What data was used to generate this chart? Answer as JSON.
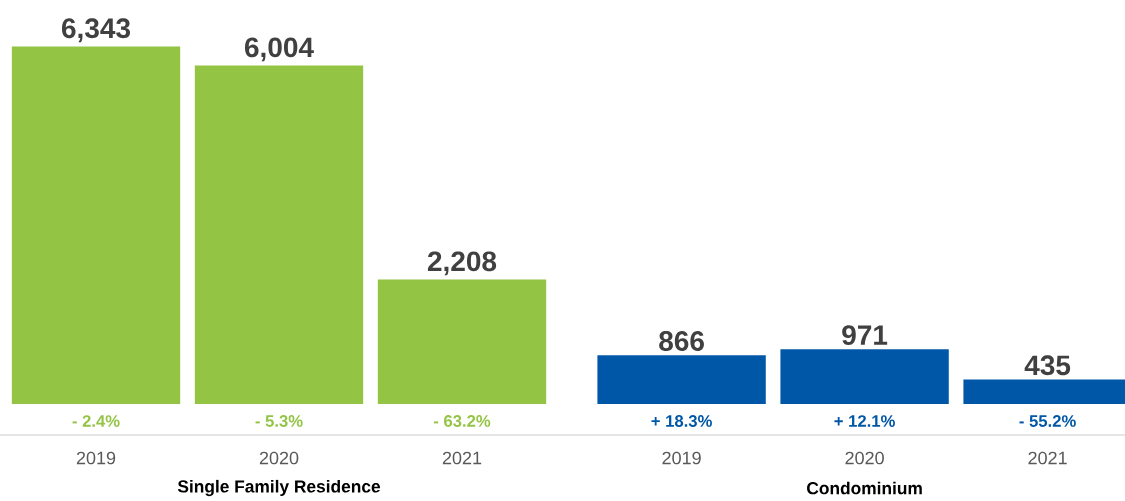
{
  "chart_data": {
    "type": "bar",
    "categories": [
      "2019",
      "2020",
      "2021",
      "2019",
      "2020",
      "2021"
    ],
    "values": [
      6343,
      6004,
      2208,
      866,
      971,
      435
    ],
    "value_labels": [
      "6,343",
      "6,004",
      "2,208",
      "866",
      "971",
      "435"
    ],
    "colors": [
      "#93c443",
      "#93c443",
      "#93c443",
      "#0057a8",
      "#0057a8",
      "#0057a8"
    ],
    "annotations": [
      "- 2.4%",
      "- 5.3%",
      "- 63.2%",
      "+ 18.3%",
      "+ 12.1%",
      "- 55.2%",
      "Single Family Residence",
      "Condominium"
    ]
  }
}
